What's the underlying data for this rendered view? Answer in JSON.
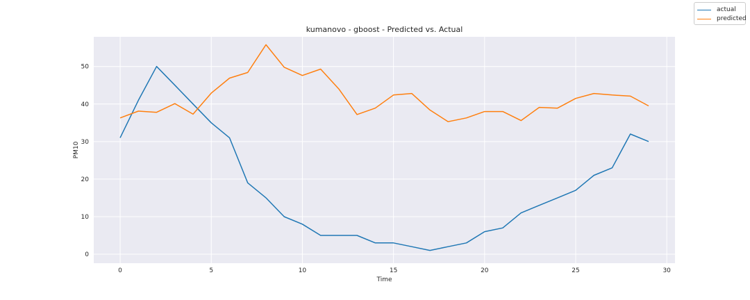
{
  "chart_data": {
    "type": "line",
    "title": "kumanovo - gboost - Predicted vs. Actual",
    "xlabel": "Time",
    "ylabel": "PM10",
    "xlim": [
      -1.45,
      30.45
    ],
    "ylim": [
      -2.4,
      57.9
    ],
    "xticks": [
      0,
      5,
      10,
      15,
      20,
      25,
      30
    ],
    "yticks": [
      0,
      10,
      20,
      30,
      40,
      50
    ],
    "grid": true,
    "legend_position": "top-right",
    "x": [
      0,
      1,
      2,
      3,
      4,
      5,
      6,
      7,
      8,
      9,
      10,
      11,
      12,
      13,
      14,
      15,
      16,
      17,
      18,
      19,
      20,
      21,
      22,
      23,
      24,
      25,
      26,
      27,
      28,
      29
    ],
    "series": [
      {
        "name": "actual",
        "color": "#1f77b4",
        "values": [
          31,
          41,
          50,
          45,
          40,
          35,
          31,
          19,
          15,
          10,
          8,
          5,
          5,
          5,
          3,
          3,
          2,
          1,
          2,
          3,
          6,
          7,
          11,
          13,
          15,
          17,
          21,
          23,
          32,
          30
        ]
      },
      {
        "name": "predicted",
        "color": "#ff7f0e",
        "values": [
          36.3,
          38.1,
          37.8,
          40.1,
          37.3,
          42.9,
          46.9,
          48.4,
          55.8,
          49.8,
          47.6,
          49.3,
          44,
          37.2,
          38.9,
          42.4,
          42.8,
          38.4,
          35.3,
          36.3,
          38,
          38,
          35.6,
          39.1,
          38.9,
          41.5,
          42.8,
          42.4,
          42.1,
          39.5
        ]
      }
    ]
  }
}
